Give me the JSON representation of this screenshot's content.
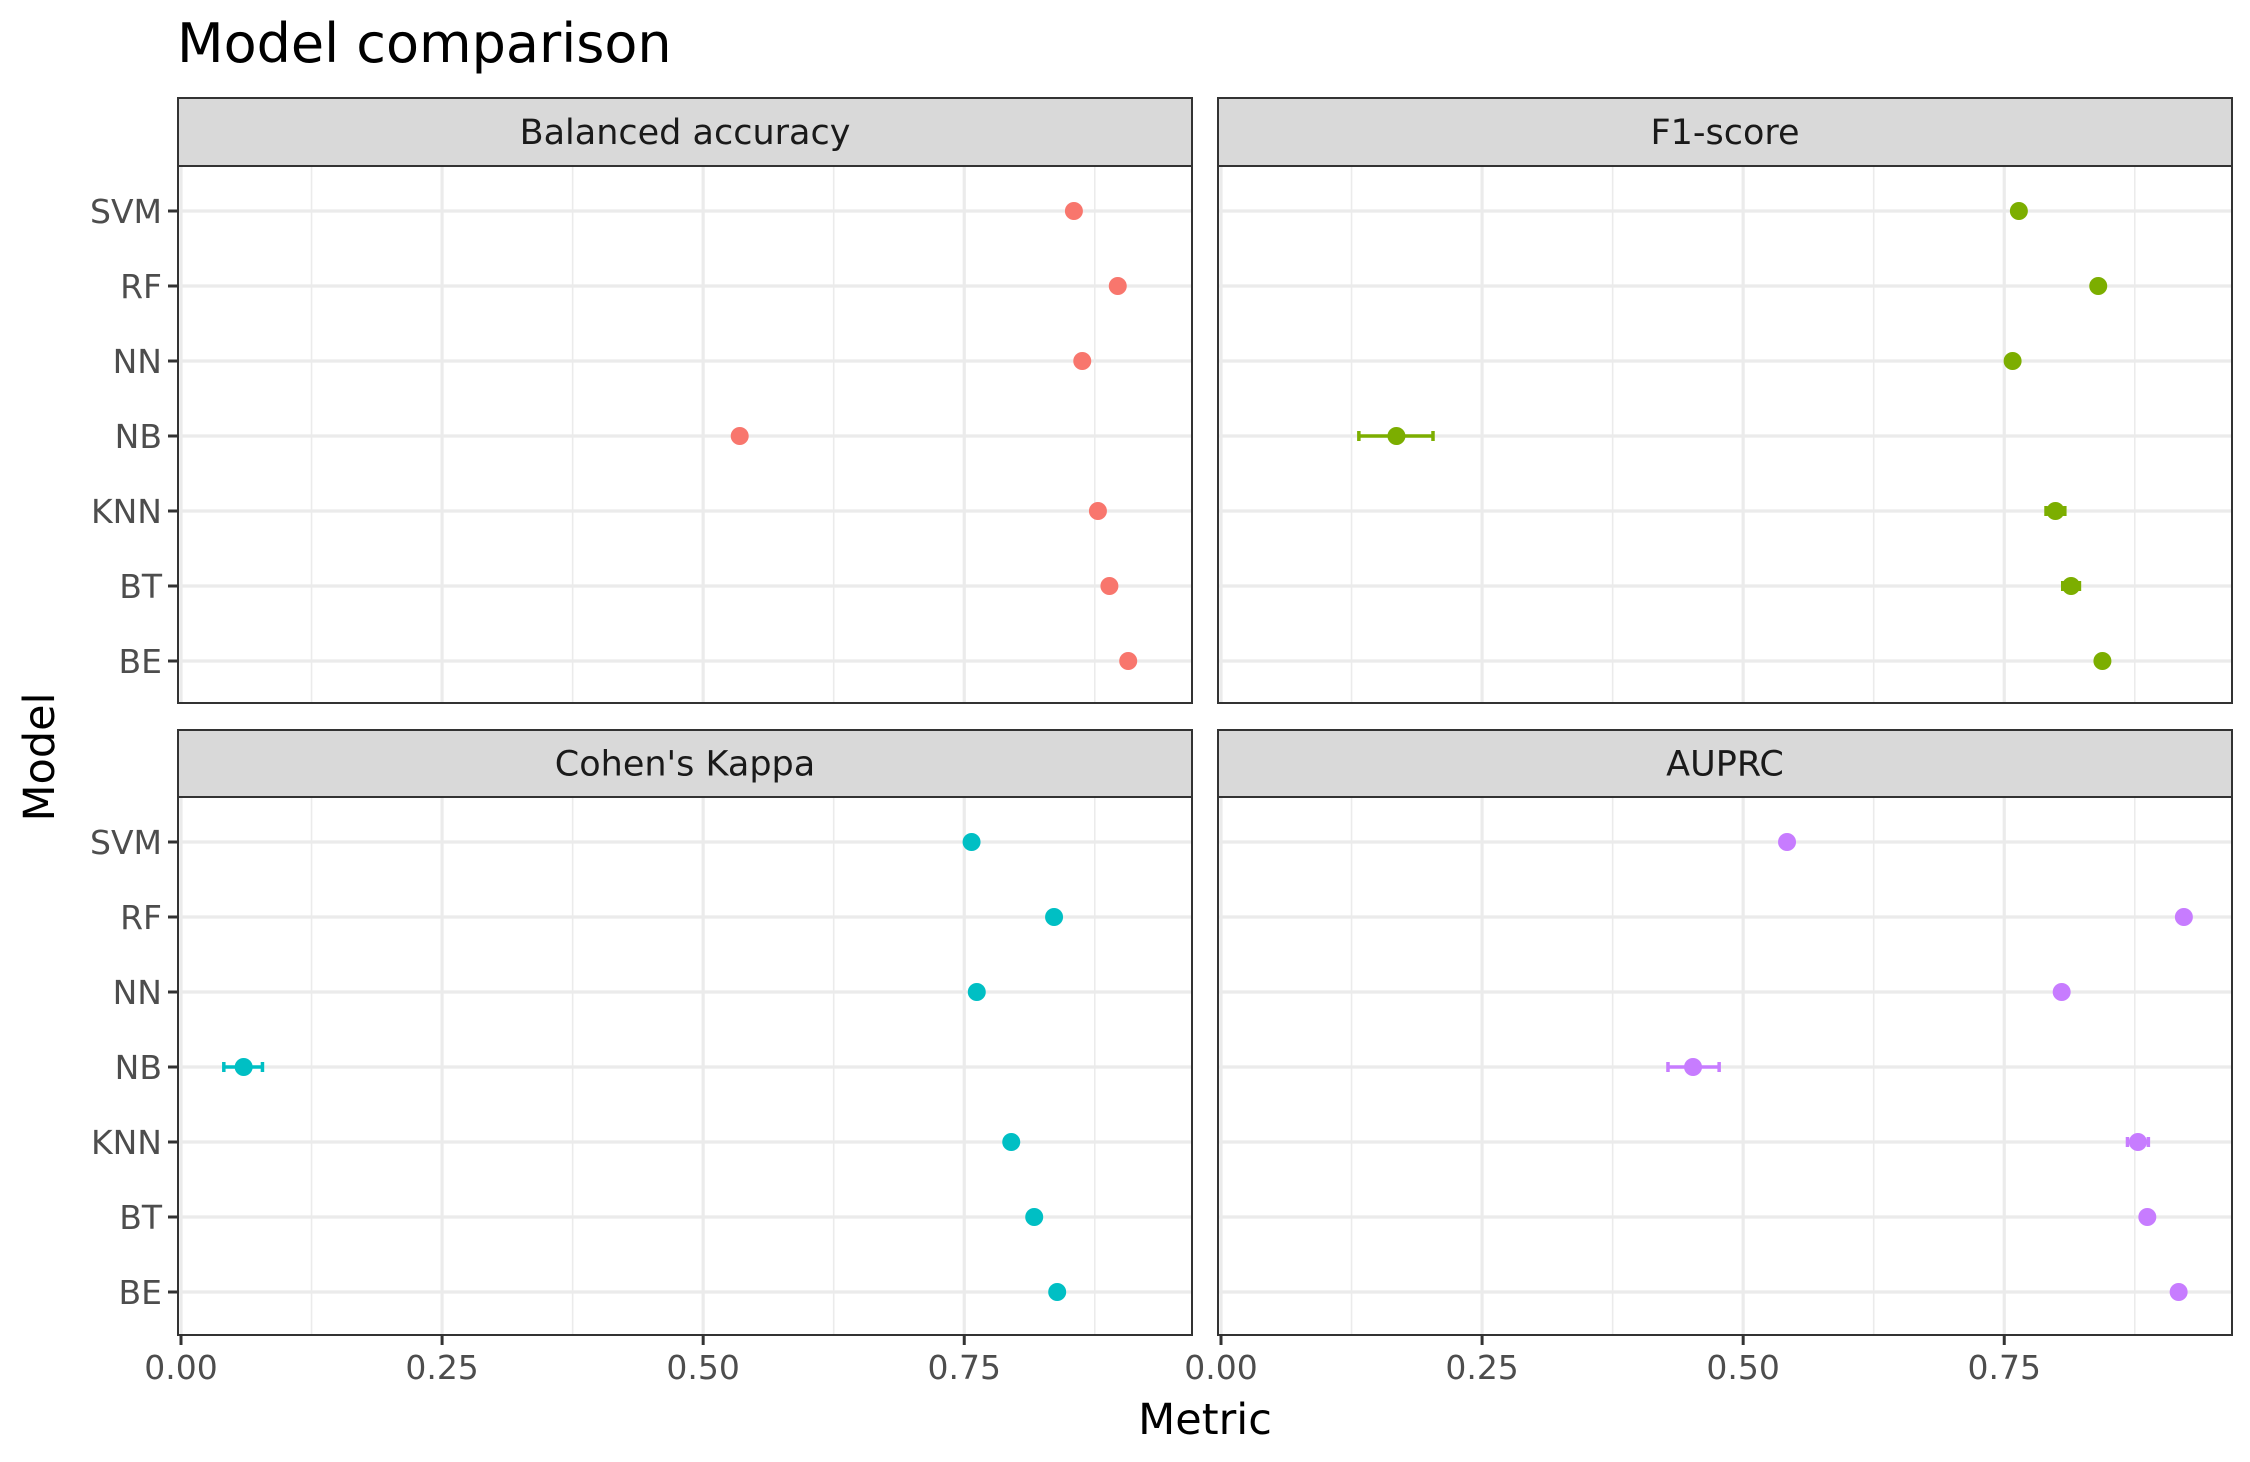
{
  "chart_data": {
    "type": "scatter",
    "title": "Model comparison",
    "xlabel": "Metric",
    "ylabel": "Model",
    "xlim": [
      0,
      0.97
    ],
    "x_ticks": [
      "0.00",
      "0.25",
      "0.50",
      "0.75"
    ],
    "x_tick_values": [
      0,
      0.25,
      0.5,
      0.75
    ],
    "models": [
      "SVM",
      "RF",
      "NN",
      "NB",
      "KNN",
      "BT",
      "BE"
    ],
    "grid": true,
    "legend": "none",
    "panels": [
      {
        "name": "Balanced accuracy",
        "color": "#F8766D",
        "values": [
          0.855,
          0.897,
          0.863,
          0.535,
          0.878,
          0.889,
          0.907
        ],
        "error_low": [
          0.855,
          0.897,
          0.863,
          0.535,
          0.878,
          0.889,
          0.907
        ],
        "error_high": [
          0.855,
          0.897,
          0.863,
          0.535,
          0.878,
          0.889,
          0.907
        ]
      },
      {
        "name": "F1-score",
        "color": "#7CAE00",
        "values": [
          0.764,
          0.84,
          0.758,
          0.168,
          0.799,
          0.814,
          0.844
        ],
        "error_low": [
          0.764,
          0.84,
          0.758,
          0.132,
          0.79,
          0.806,
          0.844
        ],
        "error_high": [
          0.764,
          0.84,
          0.758,
          0.203,
          0.808,
          0.822,
          0.844
        ]
      },
      {
        "name": "Cohen's Kappa",
        "color": "#00BFC4",
        "values": [
          0.757,
          0.836,
          0.762,
          0.06,
          0.795,
          0.817,
          0.839
        ],
        "error_low": [
          0.757,
          0.836,
          0.762,
          0.041,
          0.795,
          0.817,
          0.839
        ],
        "error_high": [
          0.757,
          0.836,
          0.762,
          0.078,
          0.795,
          0.817,
          0.839
        ]
      },
      {
        "name": "AUPRC",
        "color": "#C77CFF",
        "values": [
          0.542,
          0.922,
          0.805,
          0.452,
          0.878,
          0.887,
          0.917
        ],
        "error_low": [
          0.542,
          0.922,
          0.805,
          0.428,
          0.868,
          0.887,
          0.917
        ],
        "error_high": [
          0.542,
          0.922,
          0.805,
          0.477,
          0.888,
          0.887,
          0.917
        ]
      }
    ]
  }
}
